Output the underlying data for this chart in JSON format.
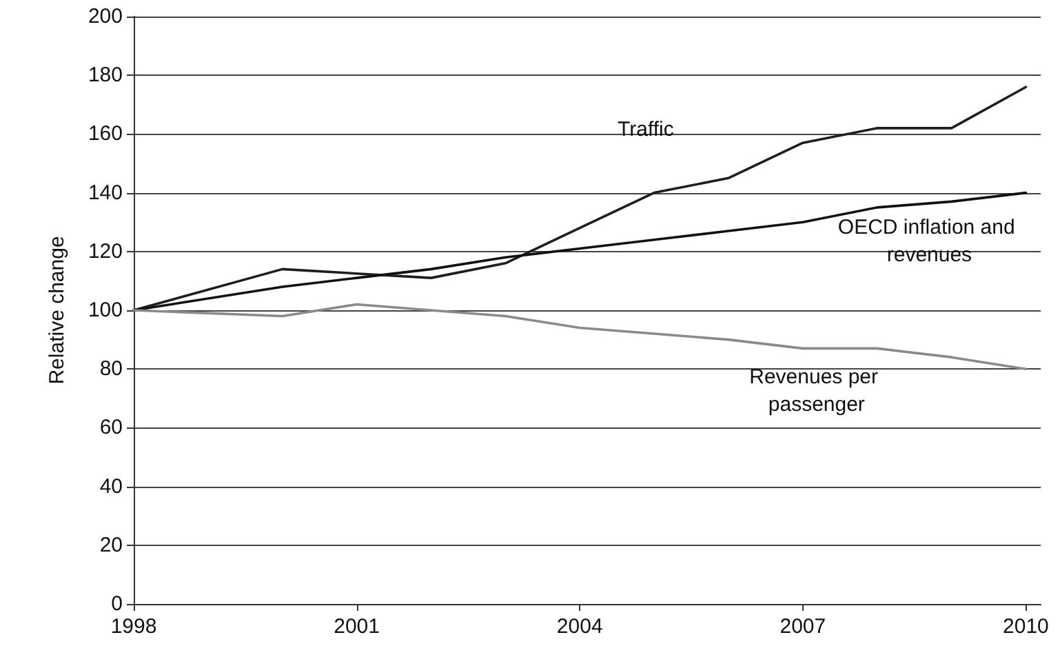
{
  "chart_data": {
    "type": "line",
    "ylabel": "Relative change",
    "xlim": [
      1998,
      2010.2
    ],
    "xticks": [
      1998,
      2001,
      2004,
      2007,
      2010
    ],
    "ylim": [
      0,
      200
    ],
    "yticks": [
      0,
      20,
      40,
      60,
      80,
      100,
      120,
      140,
      160,
      180,
      200
    ],
    "grid": "y",
    "legend": false,
    "marker": "none",
    "line_style": "solid",
    "series": [
      {
        "name": "Traffic",
        "color": "#1e1e1e",
        "x": [
          1998,
          2000,
          2002,
          2003,
          2004,
          2005,
          2006,
          2007,
          2008,
          2009,
          2010
        ],
        "values": [
          100,
          114,
          111,
          116,
          128,
          140,
          145,
          157,
          162,
          162,
          176
        ]
      },
      {
        "name": "OECD inflation and revenues",
        "color": "#111111",
        "x": [
          1998,
          2000,
          2001,
          2002,
          2003,
          2004,
          2005,
          2006,
          2007,
          2008,
          2009,
          2010
        ],
        "values": [
          100,
          108,
          111,
          114,
          118,
          121,
          124,
          127,
          130,
          135,
          137,
          140
        ]
      },
      {
        "name": "Revenues per passenger",
        "color": "#8a8a8a",
        "x": [
          1998,
          2000,
          2001,
          2002,
          2003,
          2004,
          2005,
          2006,
          2007,
          2008,
          2009,
          2010
        ],
        "values": [
          100,
          98,
          102,
          100,
          98,
          94,
          92,
          90,
          87,
          87,
          84,
          80
        ]
      }
    ]
  }
}
